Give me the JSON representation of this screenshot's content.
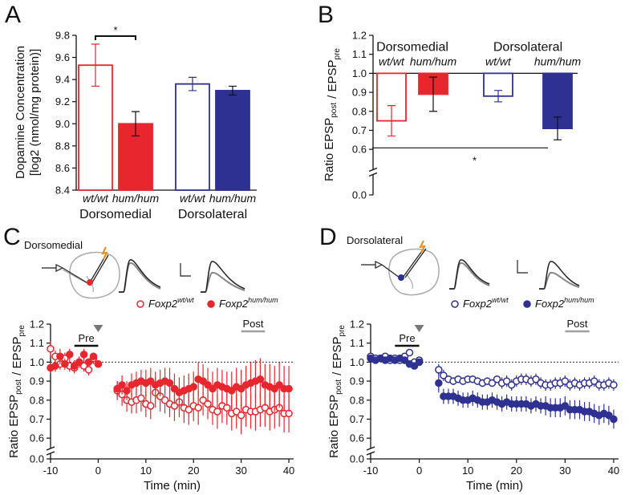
{
  "chart_data": [
    {
      "type": "bar",
      "label": "A",
      "ylabel": [
        "Dopamine Concentration",
        "[log2 (nmol/mg protein)]"
      ],
      "categories": [
        "wt/wt",
        "hum/hum",
        "wt/wt",
        "hum/hum"
      ],
      "groups": [
        {
          "name": "Dorsomedial",
          "color": "#e8262d"
        },
        {
          "name": "Dorsolateral",
          "color": "#2e3192"
        }
      ],
      "values": [
        9.53,
        9.0,
        9.36,
        9.3
      ],
      "errors": [
        0.19,
        0.11,
        0.06,
        0.04
      ],
      "colors": [
        "#e8262d",
        "#e8262d",
        "#2e3192",
        "#2e3192"
      ],
      "filled": [
        false,
        true,
        false,
        true
      ],
      "ylim": [
        8.4,
        9.8
      ],
      "yticks": [
        8.4,
        8.6,
        8.8,
        {
          "value": 9,
          "label": "9.0"
        },
        9.2,
        9.4,
        9.6,
        9.8
      ],
      "significance": {
        "text": "*",
        "between": [
          0,
          1
        ]
      }
    },
    {
      "type": "bar",
      "label": "B",
      "ylabel": [
        {
          "text": "Ratio EPSP",
          "sub": "post"
        },
        {
          "text": "/ EPSP",
          "sub": "pre"
        }
      ],
      "categories": [
        "wt/wt",
        "hum/hum",
        "wt/wt",
        "hum/hum"
      ],
      "groups": [
        {
          "name": "Dorsomedial",
          "color": "#e8262d"
        },
        {
          "name": "Dorsolateral",
          "color": "#2e3192"
        }
      ],
      "values": [
        0.75,
        0.89,
        0.88,
        0.71
      ],
      "errors": [
        0.08,
        0.09,
        0.03,
        0.06
      ],
      "colors": [
        "#e8262d",
        "#e8262d",
        "#2e3192",
        "#2e3192"
      ],
      "filled": [
        false,
        true,
        false,
        true
      ],
      "baseline": 1,
      "ylim": [
        0,
        1.2
      ],
      "axis_break": [
        0.05,
        0.55
      ],
      "yticks": [
        {
          "value": 0,
          "label": "0.0"
        },
        0.6,
        0.7,
        0.8,
        0.9,
        {
          "value": 1,
          "label": "1.0"
        },
        1.1,
        1.2
      ],
      "significance": {
        "text": "*",
        "between": [
          0,
          3
        ]
      }
    },
    {
      "type": "scatter",
      "label": "C",
      "region": {
        "name": "Dorsomedial",
        "color": "#e8262d"
      },
      "ylabel": [
        {
          "text": "Ratio EPSP",
          "sub": "post"
        },
        {
          "text": "/ EPSP",
          "sub": "pre"
        }
      ],
      "xlabel": "Time (min)",
      "x": [
        -10,
        -9,
        -8,
        -7,
        -6,
        -5,
        -4,
        -3,
        -2,
        -1,
        0,
        4,
        5,
        6,
        7,
        8,
        9,
        10,
        11,
        12,
        13,
        14,
        15,
        16,
        17,
        18,
        19,
        20,
        21,
        22,
        23,
        24,
        25,
        26,
        27,
        28,
        29,
        30,
        31,
        32,
        33,
        34,
        35,
        36,
        37,
        38,
        39,
        40
      ],
      "series": [
        {
          "name": "Foxp2",
          "name_sup": "wt/wt",
          "color": "#e8262d",
          "filled": false,
          "values": [
            1.07,
            1.03,
            0.99,
            1.02,
            0.98,
            0.97,
            1.0,
            0.98,
            0.96,
            1.02,
            0.99,
            0.85,
            0.83,
            0.8,
            0.79,
            0.8,
            0.81,
            0.78,
            0.77,
            0.84,
            0.82,
            0.8,
            0.78,
            0.77,
            0.79,
            0.76,
            0.75,
            0.77,
            0.76,
            0.8,
            0.78,
            0.75,
            0.74,
            0.77,
            0.76,
            0.73,
            0.74,
            0.72,
            0.75,
            0.74,
            0.74,
            0.75,
            0.76,
            0.74,
            0.75,
            0.76,
            0.73,
            0.73
          ],
          "errors": [
            0.04,
            0.03,
            0.03,
            0.03,
            0.03,
            0.03,
            0.02,
            0.03,
            0.03,
            0.03,
            0.02,
            0.05,
            0.06,
            0.06,
            0.06,
            0.07,
            0.07,
            0.07,
            0.07,
            0.08,
            0.08,
            0.07,
            0.07,
            0.08,
            0.08,
            0.08,
            0.08,
            0.08,
            0.09,
            0.08,
            0.08,
            0.08,
            0.09,
            0.09,
            0.09,
            0.09,
            0.09,
            0.1,
            0.09,
            0.09,
            0.1,
            0.09,
            0.1,
            0.1,
            0.1,
            0.1,
            0.1,
            0.1
          ]
        },
        {
          "name": "Foxp2",
          "name_sup": "hum/hum",
          "color": "#e8262d",
          "filled": true,
          "values": [
            0.97,
            0.98,
            1.03,
            0.99,
            1.04,
            0.98,
            1.0,
            1.04,
            1.0,
            1.03,
            0.99,
            0.86,
            0.88,
            0.85,
            0.88,
            0.89,
            0.9,
            0.89,
            0.9,
            0.88,
            0.89,
            0.9,
            0.89,
            0.86,
            0.84,
            0.85,
            0.86,
            0.87,
            0.91,
            0.9,
            0.88,
            0.86,
            0.88,
            0.87,
            0.86,
            0.85,
            0.87,
            0.86,
            0.88,
            0.89,
            0.9,
            0.91,
            0.88,
            0.87,
            0.86,
            0.88,
            0.86,
            0.86
          ],
          "errors": [
            0.03,
            0.03,
            0.04,
            0.03,
            0.03,
            0.03,
            0.03,
            0.03,
            0.02,
            0.02,
            0.02,
            0.04,
            0.05,
            0.05,
            0.06,
            0.06,
            0.06,
            0.07,
            0.07,
            0.07,
            0.07,
            0.07,
            0.08,
            0.08,
            0.08,
            0.08,
            0.08,
            0.08,
            0.09,
            0.09,
            0.09,
            0.09,
            0.09,
            0.09,
            0.09,
            0.1,
            0.1,
            0.1,
            0.1,
            0.11,
            0.11,
            0.11,
            0.11,
            0.12,
            0.12,
            0.12,
            0.12,
            0.12
          ]
        }
      ],
      "xlim": [
        -10,
        41
      ],
      "xticks": [
        -10,
        0,
        10,
        20,
        30,
        40
      ],
      "ylim": [
        0,
        1.2
      ],
      "axis_break": [
        0.05,
        0.55
      ],
      "yticks": [
        {
          "value": 0,
          "label": "0.0"
        },
        0.6,
        0.7,
        0.8,
        0.9,
        {
          "value": 1,
          "label": "1.0"
        },
        1.1,
        1.2
      ],
      "reference_line": 1,
      "windows": [
        {
          "label": "Pre",
          "range": [
            -5,
            0
          ],
          "color": "#111111"
        },
        {
          "label": "Post",
          "range": [
            30,
            35
          ],
          "color": "#a0a0a0"
        }
      ],
      "arrow_x": 0
    },
    {
      "type": "scatter",
      "label": "D",
      "region": {
        "name": "Dorsolateral",
        "color": "#2e3192"
      },
      "ylabel": [
        {
          "text": "Ratio EPSP",
          "sub": "post"
        },
        {
          "text": "/ EPSP",
          "sub": "pre"
        }
      ],
      "xlabel": "Time (min)",
      "x": [
        -10,
        -9,
        -8,
        -7,
        -6,
        -5,
        -4,
        -3,
        -2,
        -1,
        0,
        4,
        5,
        6,
        7,
        8,
        9,
        10,
        11,
        12,
        13,
        14,
        15,
        16,
        17,
        18,
        19,
        20,
        21,
        22,
        23,
        24,
        25,
        26,
        27,
        28,
        29,
        30,
        31,
        32,
        33,
        34,
        35,
        36,
        37,
        38,
        39,
        40
      ],
      "series": [
        {
          "name": "Foxp2",
          "name_sup": "wt/wt",
          "color": "#2e3192",
          "filled": false,
          "values": [
            1.03,
            1.02,
            1.02,
            1.03,
            1.01,
            1.02,
            1.01,
            1.03,
            1.05,
            1.0,
            1.01,
            0.96,
            0.93,
            0.91,
            0.9,
            0.91,
            0.9,
            0.91,
            0.91,
            0.9,
            0.89,
            0.9,
            0.89,
            0.91,
            0.89,
            0.9,
            0.88,
            0.9,
            0.91,
            0.91,
            0.9,
            0.91,
            0.89,
            0.88,
            0.88,
            0.89,
            0.89,
            0.9,
            0.88,
            0.89,
            0.88,
            0.89,
            0.89,
            0.9,
            0.88,
            0.88,
            0.89,
            0.88
          ],
          "errors": [
            0.01,
            0.01,
            0.01,
            0.01,
            0.01,
            0.01,
            0.01,
            0.01,
            0.01,
            0.01,
            0.01,
            0.03,
            0.03,
            0.02,
            0.02,
            0.02,
            0.02,
            0.02,
            0.02,
            0.02,
            0.02,
            0.02,
            0.02,
            0.02,
            0.03,
            0.03,
            0.03,
            0.03,
            0.03,
            0.03,
            0.03,
            0.03,
            0.03,
            0.03,
            0.03,
            0.03,
            0.03,
            0.03,
            0.03,
            0.03,
            0.03,
            0.03,
            0.03,
            0.03,
            0.03,
            0.03,
            0.03,
            0.03
          ]
        },
        {
          "name": "Foxp2",
          "name_sup": "hum/hum",
          "color": "#2e3192",
          "filled": true,
          "values": [
            1.02,
            1.01,
            1.02,
            1.01,
            1.02,
            1.01,
            1.02,
            1.01,
            0.99,
            0.98,
            1.0,
            0.89,
            0.82,
            0.82,
            0.82,
            0.81,
            0.8,
            0.8,
            0.81,
            0.8,
            0.79,
            0.79,
            0.8,
            0.79,
            0.78,
            0.79,
            0.78,
            0.78,
            0.78,
            0.78,
            0.77,
            0.78,
            0.77,
            0.77,
            0.76,
            0.76,
            0.76,
            0.77,
            0.75,
            0.75,
            0.75,
            0.74,
            0.74,
            0.73,
            0.72,
            0.73,
            0.72,
            0.7
          ],
          "errors": [
            0.015,
            0.015,
            0.015,
            0.015,
            0.015,
            0.015,
            0.015,
            0.015,
            0.015,
            0.015,
            0.015,
            0.05,
            0.04,
            0.04,
            0.04,
            0.04,
            0.04,
            0.04,
            0.04,
            0.04,
            0.04,
            0.04,
            0.04,
            0.04,
            0.04,
            0.04,
            0.04,
            0.04,
            0.04,
            0.04,
            0.04,
            0.04,
            0.04,
            0.05,
            0.05,
            0.05,
            0.05,
            0.05,
            0.05,
            0.05,
            0.05,
            0.05,
            0.05,
            0.05,
            0.05,
            0.05,
            0.05,
            0.05
          ]
        }
      ],
      "xlim": [
        -10,
        41
      ],
      "xticks": [
        -10,
        0,
        10,
        20,
        30,
        40
      ],
      "ylim": [
        0,
        1.2
      ],
      "axis_break": [
        0.05,
        0.55
      ],
      "yticks": [
        {
          "value": 0,
          "label": "0.0"
        },
        0.6,
        0.7,
        0.8,
        0.9,
        {
          "value": 1,
          "label": "1.0"
        },
        1.1,
        1.2
      ],
      "reference_line": 1,
      "windows": [
        {
          "label": "Pre",
          "range": [
            -5,
            0
          ],
          "color": "#111111"
        },
        {
          "label": "Post",
          "range": [
            30,
            35
          ],
          "color": "#a0a0a0"
        }
      ],
      "arrow_x": 0
    }
  ]
}
